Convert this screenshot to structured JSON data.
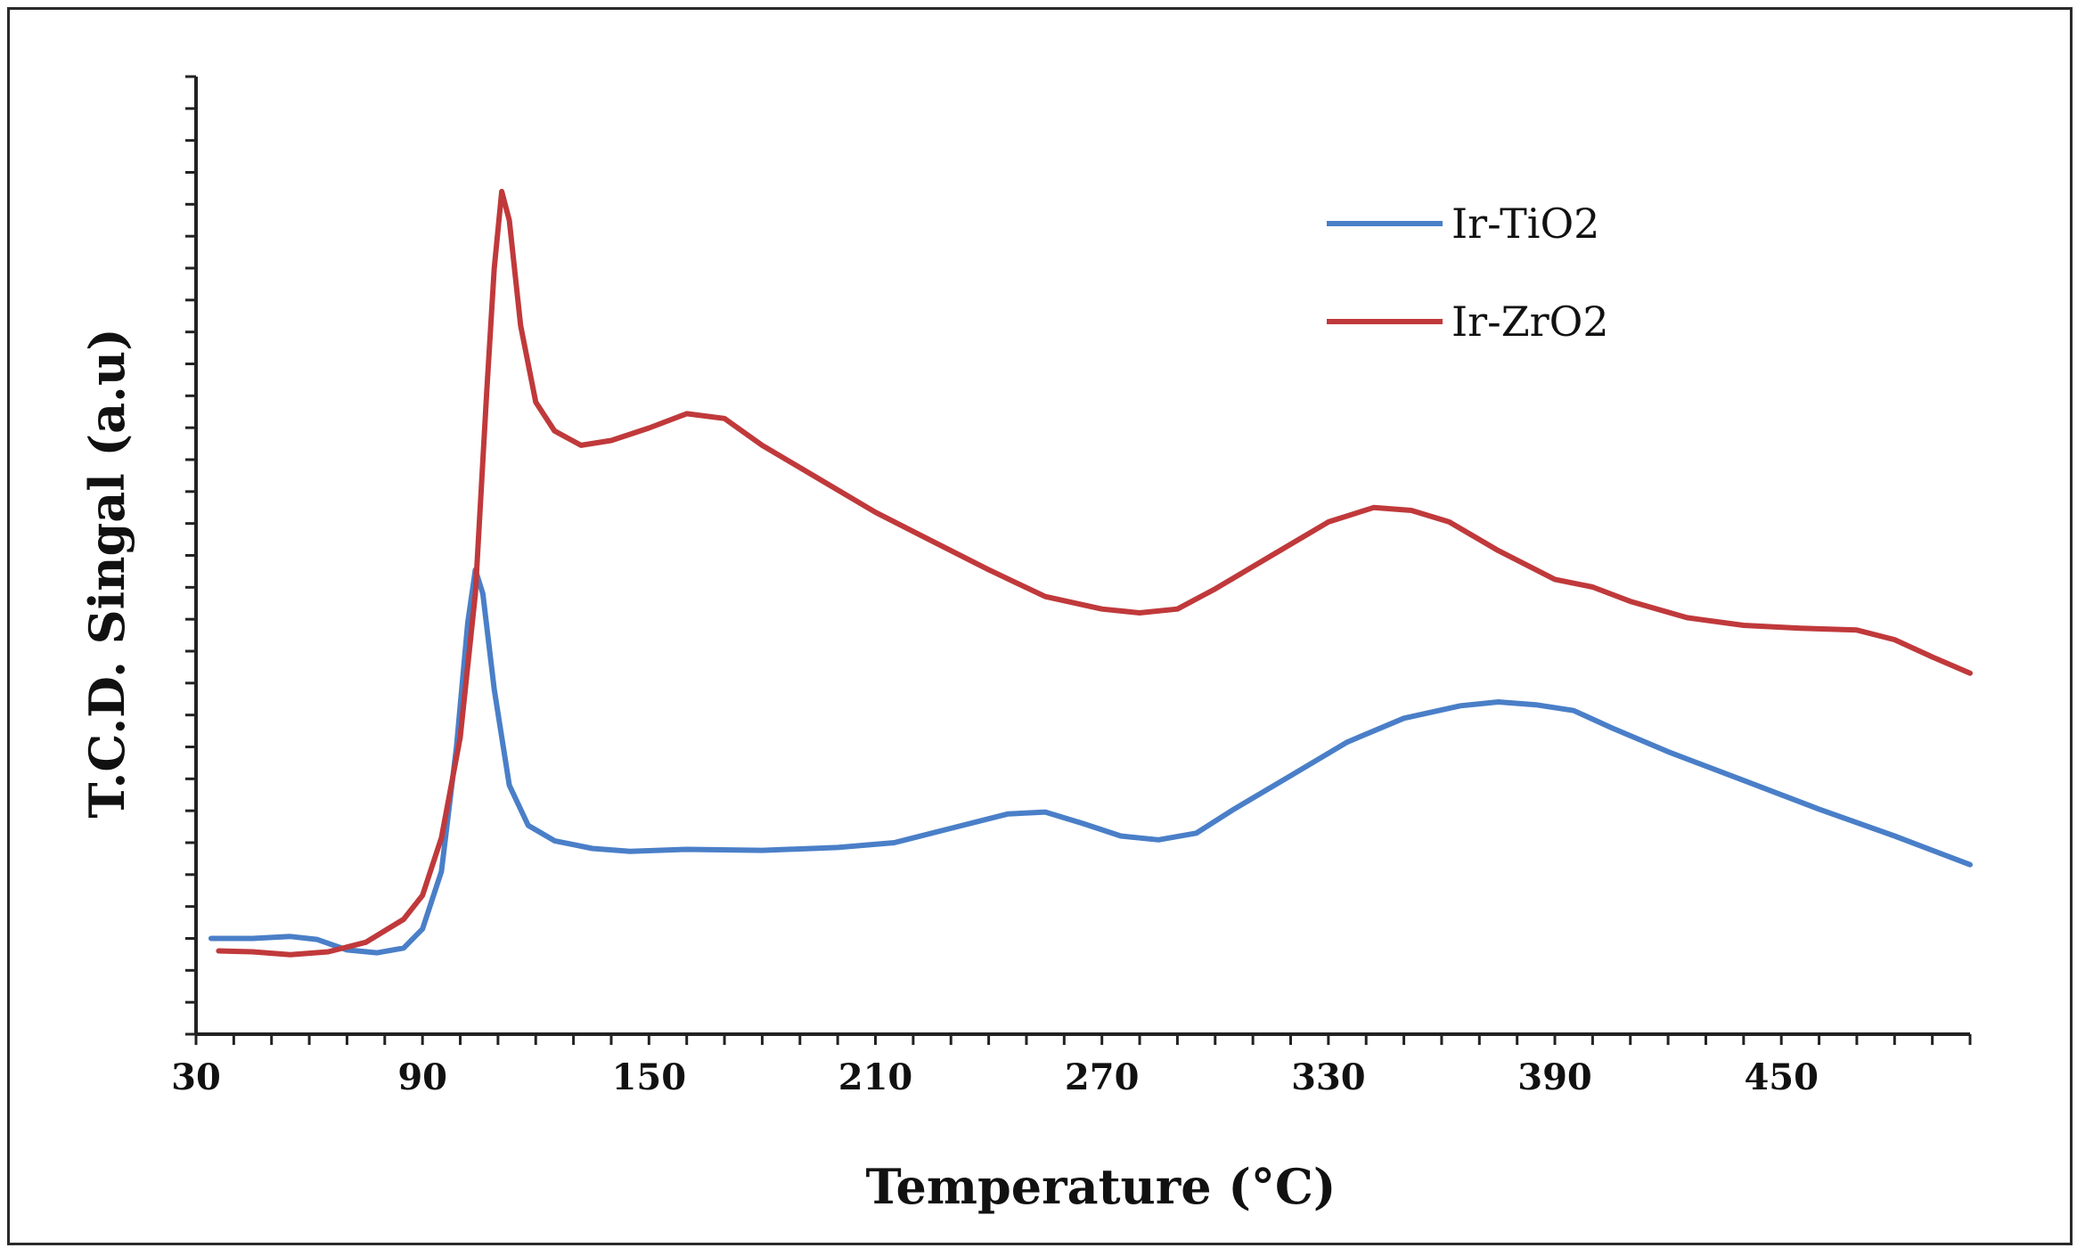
{
  "chart_data": {
    "type": "line",
    "xlabel": "Temperature (°C)",
    "ylabel": "T.C.D. Singal (a.u)",
    "xlim": [
      30,
      500
    ],
    "ylim": [
      0,
      100
    ],
    "x_ticks": [
      "30",
      "90",
      "150",
      "210",
      "270",
      "330",
      "390",
      "450"
    ],
    "x_tick_values": [
      30,
      90,
      150,
      210,
      270,
      330,
      390,
      450
    ],
    "y_tick_labels_shown": false,
    "grid": false,
    "legend": "top-right",
    "series": [
      {
        "name": "Ir-TiO2",
        "color": "#4a7fc8",
        "points": [
          [
            34,
            10.0
          ],
          [
            45,
            10.0
          ],
          [
            55,
            10.2
          ],
          [
            62,
            9.9
          ],
          [
            70,
            8.8
          ],
          [
            78,
            8.5
          ],
          [
            85,
            9.0
          ],
          [
            90,
            11.0
          ],
          [
            95,
            17.0
          ],
          [
            99,
            30.0
          ],
          [
            102,
            43.0
          ],
          [
            104,
            48.5
          ],
          [
            106,
            46.0
          ],
          [
            109,
            36.0
          ],
          [
            113,
            26.0
          ],
          [
            118,
            21.8
          ],
          [
            125,
            20.2
          ],
          [
            135,
            19.4
          ],
          [
            145,
            19.1
          ],
          [
            160,
            19.3
          ],
          [
            180,
            19.2
          ],
          [
            200,
            19.5
          ],
          [
            215,
            20.0
          ],
          [
            230,
            21.5
          ],
          [
            245,
            23.0
          ],
          [
            255,
            23.2
          ],
          [
            265,
            22.0
          ],
          [
            275,
            20.7
          ],
          [
            285,
            20.3
          ],
          [
            295,
            21.0
          ],
          [
            305,
            23.5
          ],
          [
            320,
            27.0
          ],
          [
            335,
            30.5
          ],
          [
            350,
            33.0
          ],
          [
            365,
            34.3
          ],
          [
            375,
            34.7
          ],
          [
            385,
            34.4
          ],
          [
            395,
            33.8
          ],
          [
            405,
            32.0
          ],
          [
            420,
            29.5
          ],
          [
            440,
            26.5
          ],
          [
            460,
            23.5
          ],
          [
            480,
            20.7
          ],
          [
            500,
            17.7
          ]
        ]
      },
      {
        "name": "Ir-ZrO2",
        "color": "#c0393b",
        "points": [
          [
            36,
            8.7
          ],
          [
            45,
            8.6
          ],
          [
            55,
            8.3
          ],
          [
            65,
            8.6
          ],
          [
            75,
            9.6
          ],
          [
            85,
            12.0
          ],
          [
            90,
            14.5
          ],
          [
            95,
            20.5
          ],
          [
            100,
            31.0
          ],
          [
            104,
            46.0
          ],
          [
            107,
            67.0
          ],
          [
            109,
            80.0
          ],
          [
            111,
            88.0
          ],
          [
            113,
            85.0
          ],
          [
            116,
            74.0
          ],
          [
            120,
            66.0
          ],
          [
            125,
            63.0
          ],
          [
            132,
            61.5
          ],
          [
            140,
            62.0
          ],
          [
            150,
            63.3
          ],
          [
            160,
            64.8
          ],
          [
            170,
            64.3
          ],
          [
            180,
            61.5
          ],
          [
            195,
            58.0
          ],
          [
            210,
            54.5
          ],
          [
            225,
            51.5
          ],
          [
            240,
            48.5
          ],
          [
            255,
            45.7
          ],
          [
            270,
            44.4
          ],
          [
            280,
            44.0
          ],
          [
            290,
            44.4
          ],
          [
            300,
            46.5
          ],
          [
            315,
            50.0
          ],
          [
            330,
            53.5
          ],
          [
            342,
            55.0
          ],
          [
            352,
            54.7
          ],
          [
            362,
            53.5
          ],
          [
            375,
            50.5
          ],
          [
            390,
            47.5
          ],
          [
            400,
            46.7
          ],
          [
            410,
            45.2
          ],
          [
            425,
            43.5
          ],
          [
            440,
            42.7
          ],
          [
            455,
            42.4
          ],
          [
            470,
            42.2
          ],
          [
            480,
            41.2
          ],
          [
            490,
            39.4
          ],
          [
            500,
            37.7
          ]
        ]
      }
    ]
  }
}
